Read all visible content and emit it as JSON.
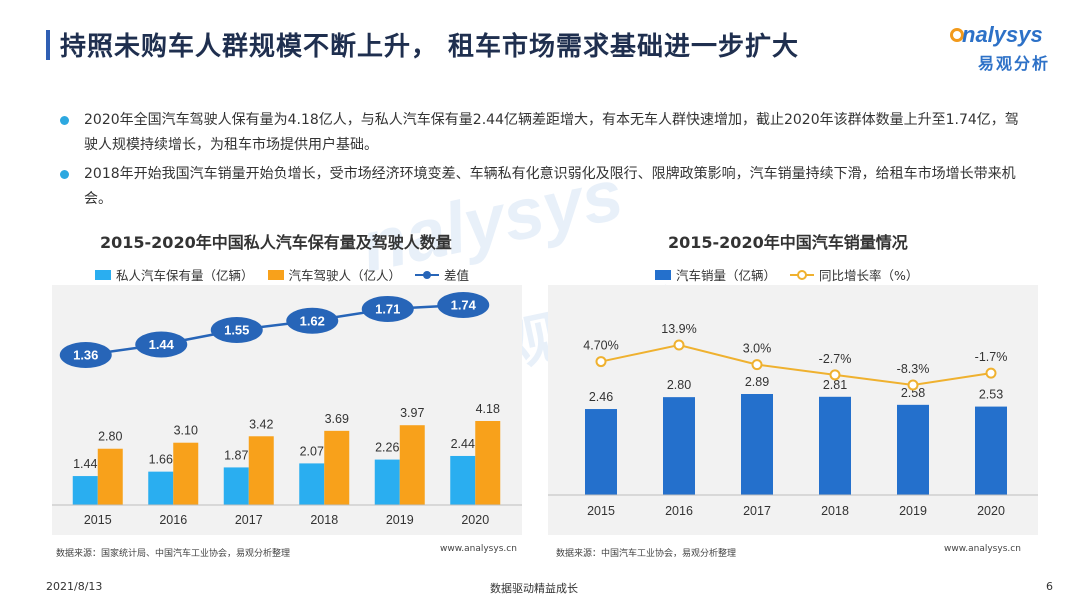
{
  "header": {
    "title": "持照未购车人群规模不断上升， 租车市场需求基础进一步扩大",
    "logo_word": "nalysys",
    "logo_cn": "易观分析"
  },
  "bullets": [
    "2020年全国汽车驾驶人保有量为4.18亿人，与私人汽车保有量2.44亿辆差距增大，有本无车人群快速增加，截止2020年该群体数量上升至1.74亿，驾驶人规模持续增长，为租车市场提供用户基础。",
    "2018年开始我国汽车销量开始负增长，受市场经济环境变差、车辆私有化意识弱化及限行、限牌政策影响，汽车销量持续下滑，给租车市场增长带来机会。"
  ],
  "watermark": {
    "word": "nalysys",
    "cn": "易观分析"
  },
  "colors": {
    "private_cars": "#2aaef0",
    "drivers": "#f8a11b",
    "gap_line": "#2765b8",
    "sales_bar": "#2470cc",
    "growth_line": "#efb12f"
  },
  "chart_data": [
    {
      "type": "bar",
      "title": "2015-2020年中国私人汽车保有量及驾驶人数量",
      "categories": [
        "2015",
        "2016",
        "2017",
        "2018",
        "2019",
        "2020"
      ],
      "series": [
        {
          "name": "私人汽车保有量（亿辆）",
          "kind": "bar",
          "values": [
            1.44,
            1.66,
            1.87,
            2.07,
            2.26,
            2.44
          ]
        },
        {
          "name": "汽车驾驶人（亿人）",
          "kind": "bar",
          "values": [
            2.8,
            3.1,
            3.42,
            3.69,
            3.97,
            4.18
          ]
        },
        {
          "name": "差值",
          "kind": "line",
          "values": [
            1.36,
            1.44,
            1.55,
            1.62,
            1.71,
            1.74
          ]
        }
      ],
      "value_labels": {
        "private": [
          "1.44",
          "1.66",
          "1.87",
          "2.07",
          "2.26",
          "2.44"
        ],
        "drivers": [
          "2.80",
          "3.10",
          "3.42",
          "3.69",
          "3.97",
          "4.18"
        ],
        "gap": [
          "1.36",
          "1.44",
          "1.55",
          "1.62",
          "1.71",
          "1.74"
        ]
      },
      "source": "数据来源：国家统计局、中国汽车工业协会，易观分析整理",
      "url": "www.analysys.cn",
      "legend_position": "top-left"
    },
    {
      "type": "bar",
      "title": "2015-2020年中国汽车销量情况",
      "categories": [
        "2015",
        "2016",
        "2017",
        "2018",
        "2019",
        "2020"
      ],
      "series": [
        {
          "name": "汽车销量（亿辆）",
          "kind": "bar",
          "values": [
            2.46,
            2.8,
            2.89,
            2.81,
            2.58,
            2.53
          ]
        },
        {
          "name": "同比增长率（%）",
          "kind": "line",
          "values": [
            4.7,
            13.9,
            3.0,
            -2.7,
            -8.3,
            -1.7
          ]
        }
      ],
      "value_labels": {
        "sales": [
          "2.46",
          "2.80",
          "2.89",
          "2.81",
          "2.58",
          "2.53"
        ],
        "growth": [
          "4.70%",
          "13.9%",
          "3.0%",
          "-2.7%",
          "-8.3%",
          "-1.7%"
        ]
      },
      "source": "数据来源：中国汽车工业协会，易观分析整理",
      "url": "www.analysys.cn",
      "legend_position": "top-left"
    }
  ],
  "footer": {
    "date": "2021/8/13",
    "slogan": "数据驱动精益成长",
    "page": "6"
  }
}
